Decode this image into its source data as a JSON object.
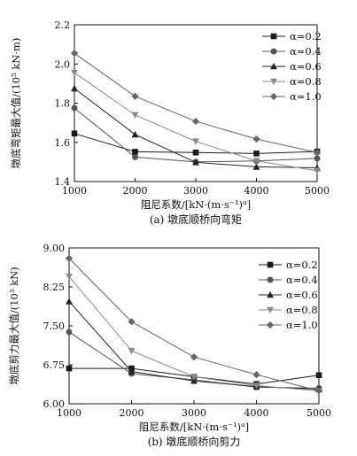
{
  "chart_data": [
    {
      "type": "line",
      "caption": "(a) 墩底顺桥向弯矩",
      "xlabel": "阻尼系数/[kN·(m·s⁻¹)ᵅ]",
      "ylabel": "墩底弯矩最大值/(10⁵ kN·m)",
      "x": [
        1000,
        2000,
        3000,
        4000,
        5000
      ],
      "x_ticks": [
        "1000",
        "2000",
        "3000",
        "4000",
        "5000"
      ],
      "y_ticks": [
        "1.4",
        "1.6",
        "1.8",
        "2.0",
        "2.2"
      ],
      "xlim": [
        1000,
        5000
      ],
      "ylim": [
        1.4,
        2.2
      ],
      "legend_position": "top-right",
      "series": [
        {
          "name": "α=0.2",
          "marker": "square",
          "color": "#1a1a1a",
          "values": [
            1.645,
            1.552,
            1.548,
            1.543,
            1.553
          ]
        },
        {
          "name": "α=0.4",
          "marker": "circle",
          "color": "#555555",
          "values": [
            1.775,
            1.525,
            1.5,
            1.505,
            1.518
          ]
        },
        {
          "name": "α=0.6",
          "marker": "triangle-up",
          "color": "#222222",
          "values": [
            1.875,
            1.64,
            1.498,
            1.475,
            1.47
          ]
        },
        {
          "name": "α=0.8",
          "marker": "triangle-down",
          "color": "#8a8a8a",
          "values": [
            1.955,
            1.74,
            1.605,
            1.505,
            1.455
          ]
        },
        {
          "name": "α=1.0",
          "marker": "diamond",
          "color": "#666666",
          "values": [
            2.055,
            1.835,
            1.707,
            1.617,
            1.548
          ]
        }
      ]
    },
    {
      "type": "line",
      "caption": "(b) 墩底顺桥向剪力",
      "xlabel": "阻尼系数/[kN·(m·s⁻¹)ᵅ]",
      "ylabel": "墩底剪力最大值/(10³ kN)",
      "x": [
        1000,
        2000,
        3000,
        4000,
        5000
      ],
      "x_ticks": [
        "1000",
        "2000",
        "3000",
        "4000",
        "5000"
      ],
      "y_ticks": [
        "6.00",
        "6.75",
        "7.50",
        "8.25",
        "9.00"
      ],
      "xlim": [
        1000,
        5000
      ],
      "ylim": [
        6.0,
        9.0
      ],
      "legend_position": "top-right",
      "series": [
        {
          "name": "α=0.2",
          "marker": "square",
          "color": "#1a1a1a",
          "values": [
            6.68,
            6.68,
            6.52,
            6.38,
            6.55
          ]
        },
        {
          "name": "α=0.4",
          "marker": "circle",
          "color": "#555555",
          "values": [
            7.38,
            6.58,
            6.46,
            6.32,
            6.3
          ]
        },
        {
          "name": "α=0.6",
          "marker": "triangle-up",
          "color": "#222222",
          "values": [
            7.97,
            6.62,
            6.44,
            6.33,
            6.28
          ]
        },
        {
          "name": "α=0.8",
          "marker": "triangle-down",
          "color": "#8a8a8a",
          "values": [
            8.45,
            7.02,
            6.52,
            6.35,
            6.25
          ]
        },
        {
          "name": "α=1.0",
          "marker": "diamond",
          "color": "#666666",
          "values": [
            8.8,
            7.58,
            6.9,
            6.56,
            6.25
          ]
        }
      ]
    }
  ]
}
